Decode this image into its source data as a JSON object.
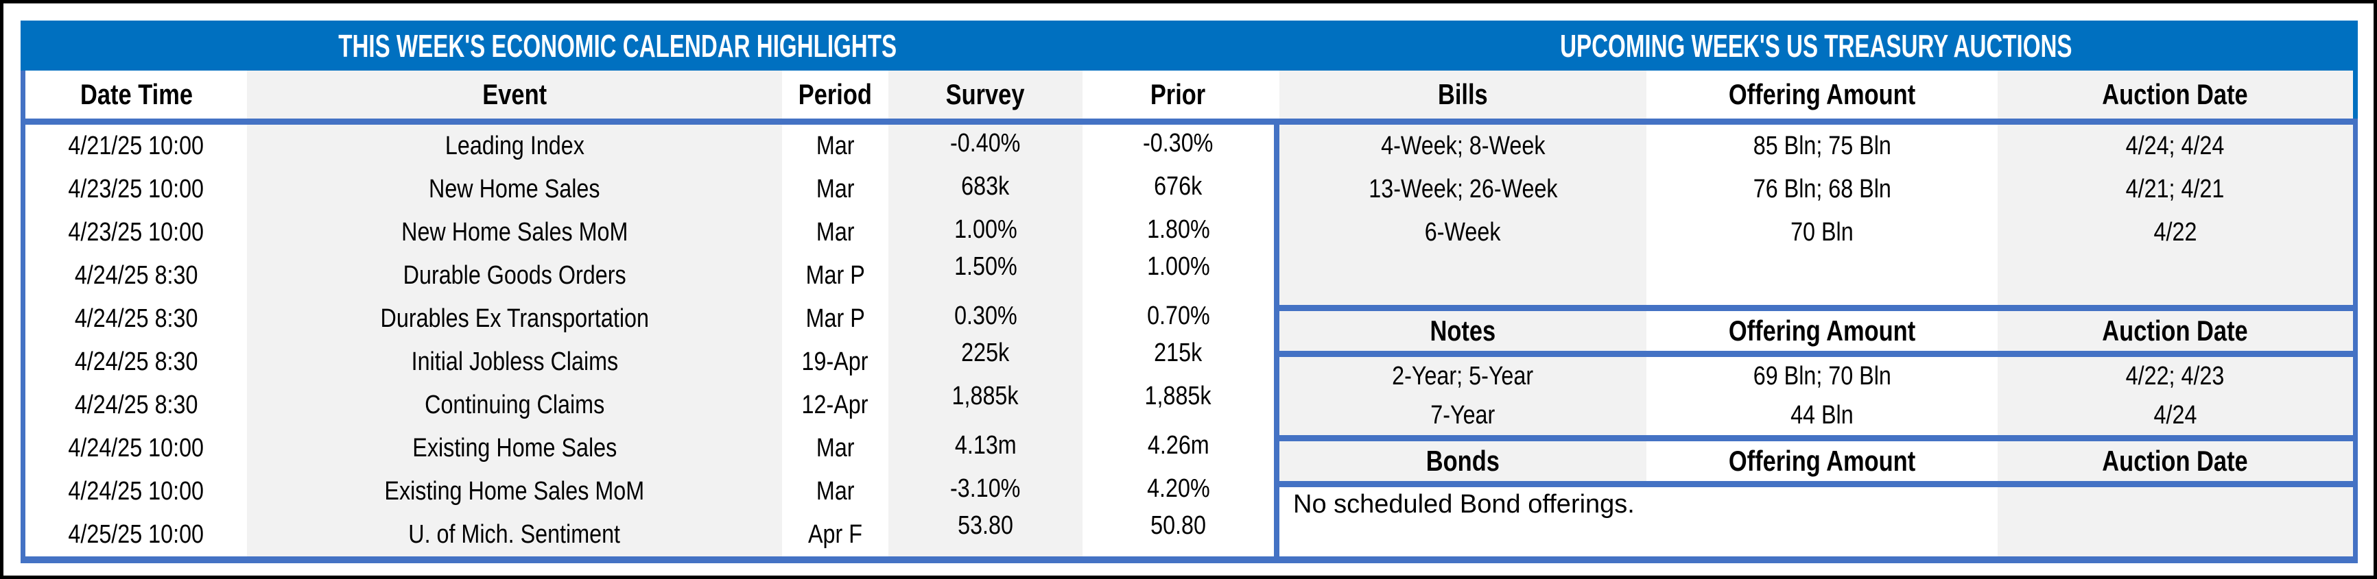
{
  "colors": {
    "title_band": "#0070C0",
    "table_border": "#4472C4",
    "stripe": "#F2F2F2",
    "outer_border": "#000000",
    "title_text": "#ffffff"
  },
  "left": {
    "title": "THIS WEEK'S ECONOMIC CALENDAR HIGHLIGHTS",
    "columns": {
      "date": "Date Time",
      "event": "Event",
      "period": "Period",
      "survey": "Survey",
      "prior": "Prior"
    },
    "rows": [
      {
        "date": "4/21/25 10:00",
        "event": "Leading Index",
        "period": "Mar",
        "survey": "-0.40%",
        "prior": "-0.30%"
      },
      {
        "date": "4/23/25 10:00",
        "event": "New Home Sales",
        "period": "Mar",
        "survey": "683k",
        "prior": "676k"
      },
      {
        "date": "4/23/25 10:00",
        "event": "New Home Sales MoM",
        "period": "Mar",
        "survey": "1.00%",
        "prior": "1.80%"
      },
      {
        "date": "4/24/25 8:30",
        "event": "Durable Goods Orders",
        "period": "Mar P",
        "survey": "1.50%",
        "prior": "1.00%"
      },
      {
        "date": "4/24/25 8:30",
        "event": "Durables Ex Transportation",
        "period": "Mar P",
        "survey": "0.30%",
        "prior": "0.70%"
      },
      {
        "date": "4/24/25 8:30",
        "event": "Initial Jobless Claims",
        "period": "19-Apr",
        "survey": "225k",
        "prior": "215k"
      },
      {
        "date": "4/24/25 8:30",
        "event": "Continuing Claims",
        "period": "12-Apr",
        "survey": "1,885k",
        "prior": "1,885k"
      },
      {
        "date": "4/24/25 10:00",
        "event": "Existing Home Sales",
        "period": "Mar",
        "survey": "4.13m",
        "prior": "4.26m"
      },
      {
        "date": "4/24/25 10:00",
        "event": "Existing Home Sales MoM",
        "period": "Mar",
        "survey": "-3.10%",
        "prior": "4.20%"
      },
      {
        "date": "4/25/25 10:00",
        "event": "U. of Mich. Sentiment",
        "period": "Apr F",
        "survey": "53.80",
        "prior": "50.80"
      }
    ]
  },
  "right": {
    "title": "UPCOMING WEEK'S US TREASURY AUCTIONS",
    "bills": {
      "label": "Bills",
      "amount_label": "Offering Amount",
      "date_label": "Auction Date",
      "rows": [
        {
          "security": "4-Week; 8-Week",
          "amount": "85 Bln; 75 Bln",
          "date": "4/24; 4/24"
        },
        {
          "security": "13-Week; 26-Week",
          "amount": "76 Bln; 68 Bln",
          "date": "4/21; 4/21"
        },
        {
          "security": "6-Week",
          "amount": "70 Bln",
          "date": "4/22"
        }
      ]
    },
    "notes": {
      "label": "Notes",
      "amount_label": "Offering Amount",
      "date_label": "Auction Date",
      "rows": [
        {
          "security": "2-Year; 5-Year",
          "amount": "69 Bln; 70 Bln",
          "date": "4/22; 4/23"
        },
        {
          "security": "7-Year",
          "amount": "44 Bln",
          "date": "4/24"
        }
      ]
    },
    "bonds": {
      "label": "Bonds",
      "amount_label": "Offering Amount",
      "date_label": "Auction Date",
      "note": "No scheduled Bond offerings."
    }
  }
}
